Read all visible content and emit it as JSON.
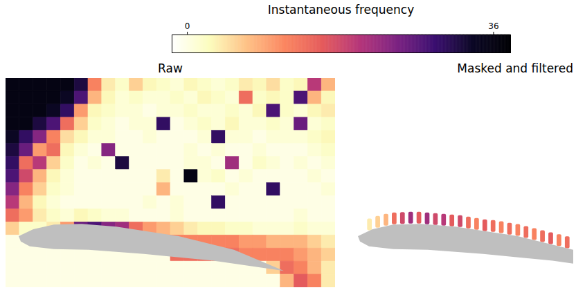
{
  "colorbar": {
    "title": "Instantaneous frequency",
    "range": [
      -1.8,
      38
    ],
    "ticks": [
      0,
      36
    ]
  },
  "chart_data": [
    {
      "type": "heatmap",
      "title": "Raw",
      "xlim": [
        0,
        24
      ],
      "ylim": [
        0,
        16
      ],
      "tick_labels": false,
      "z": [
        [
          36,
          36,
          36,
          36,
          36,
          32,
          12,
          4,
          2,
          6,
          3,
          2,
          1,
          3,
          2,
          1,
          2,
          4,
          3,
          5,
          2,
          3,
          20,
          8
        ],
        [
          36,
          36,
          36,
          36,
          34,
          28,
          8,
          3,
          1,
          2,
          1,
          1,
          2,
          1,
          3,
          2,
          1,
          14,
          2,
          3,
          2,
          28,
          8,
          3
        ],
        [
          36,
          36,
          36,
          34,
          30,
          10,
          3,
          2,
          1,
          1,
          0,
          1,
          1,
          2,
          1,
          1,
          2,
          1,
          3,
          28,
          2,
          1,
          3,
          4
        ],
        [
          36,
          36,
          32,
          28,
          14,
          6,
          2,
          1,
          0,
          1,
          1,
          30,
          0,
          1,
          2,
          1,
          3,
          1,
          1,
          2,
          1,
          26,
          1,
          2
        ],
        [
          34,
          30,
          24,
          12,
          5,
          3,
          1,
          1,
          0,
          0,
          1,
          0,
          0,
          0,
          1,
          30,
          1,
          1,
          0,
          1,
          1,
          1,
          2,
          3
        ],
        [
          32,
          26,
          10,
          14,
          3,
          1,
          0,
          24,
          0,
          0,
          0,
          0,
          0,
          1,
          0,
          1,
          0,
          0,
          1,
          0,
          0,
          0,
          1,
          2
        ],
        [
          30,
          14,
          20,
          6,
          2,
          0,
          1,
          0,
          32,
          0,
          0,
          0,
          0,
          1,
          1,
          0,
          22,
          0,
          2,
          1,
          0,
          1,
          0,
          1
        ],
        [
          28,
          18,
          8,
          3,
          1,
          0,
          0,
          0,
          0,
          0,
          0,
          4,
          0,
          36,
          1,
          2,
          0,
          1,
          0,
          0,
          0,
          0,
          1,
          0
        ],
        [
          24,
          12,
          6,
          2,
          1,
          0,
          0,
          0,
          0,
          0,
          0,
          8,
          0,
          0,
          0,
          0,
          1,
          0,
          0,
          30,
          0,
          0,
          0,
          1
        ],
        [
          20,
          8,
          3,
          1,
          0,
          0,
          0,
          0,
          0,
          0,
          1,
          0,
          1,
          0,
          0,
          30,
          0,
          0,
          0,
          0,
          0,
          0,
          0,
          0
        ],
        [
          14,
          10,
          4,
          2,
          1,
          3,
          2,
          1,
          1,
          0,
          0,
          0,
          1,
          0,
          0,
          0,
          0,
          0,
          0,
          0,
          0,
          1,
          0,
          0
        ],
        [
          6,
          2,
          2,
          4,
          10,
          26,
          28,
          24,
          22,
          14,
          10,
          8,
          6,
          4,
          3,
          3,
          2,
          2,
          1,
          1,
          1,
          2,
          1,
          1
        ],
        [
          0,
          0,
          0,
          0,
          4,
          20,
          24,
          26,
          22,
          20,
          18,
          14,
          12,
          12,
          12,
          12,
          12,
          10,
          10,
          8,
          8,
          8,
          6,
          4
        ],
        [
          0,
          0,
          0,
          0,
          0,
          0,
          0,
          0,
          0,
          0,
          0,
          0,
          14,
          14,
          14,
          12,
          14,
          12,
          12,
          12,
          12,
          10,
          8,
          6
        ],
        [
          0,
          0,
          0,
          0,
          0,
          0,
          0,
          0,
          0,
          0,
          0,
          0,
          0,
          0,
          0,
          0,
          0,
          0,
          0,
          6,
          14,
          12,
          8,
          4
        ],
        [
          0,
          0,
          0,
          0,
          0,
          0,
          0,
          0,
          0,
          0,
          0,
          0,
          0,
          0,
          0,
          0,
          0,
          0,
          0,
          0,
          8,
          16,
          12,
          4
        ]
      ]
    },
    {
      "type": "heatmap",
      "title": "Masked and filtered",
      "xlim": [
        0,
        16.64
      ],
      "ylim": [
        0,
        16
      ],
      "tick_labels": false,
      "cells": {
        "x": [
          1.8,
          2.4,
          3.0,
          3.6,
          4.2,
          4.8,
          5.4,
          6.0,
          6.6,
          7.2,
          7.8,
          8.4,
          9.0,
          9.6,
          10.2,
          10.8,
          11.4,
          12.0,
          12.6,
          13.2,
          13.8,
          14.4,
          15.0,
          15.6,
          16.2
        ],
        "y": [
          11.2,
          11.0,
          10.84,
          10.73,
          10.71,
          10.68,
          10.68,
          10.73,
          10.79,
          10.84,
          10.89,
          10.94,
          11.05,
          11.15,
          11.26,
          11.31,
          11.41,
          11.52,
          11.62,
          11.78,
          11.93,
          12.09,
          12.25,
          12.4,
          12.56
        ],
        "values": [
          4,
          6,
          8,
          14,
          18,
          22,
          16,
          22,
          18,
          20,
          16,
          18,
          14,
          12,
          16,
          14,
          12,
          14,
          12,
          14,
          12,
          14,
          16,
          12,
          14
        ]
      }
    }
  ]
}
